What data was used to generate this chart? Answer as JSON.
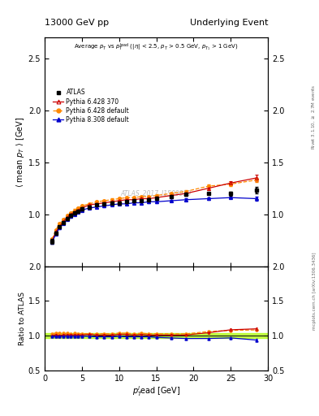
{
  "title_left": "13000 GeV pp",
  "title_right": "Underlying Event",
  "watermark": "ATLAS_2017_I1509919",
  "ylim_main": [
    0.5,
    2.7
  ],
  "ylim_ratio": [
    0.5,
    2.0
  ],
  "xlim": [
    0,
    30
  ],
  "yticks_main": [
    0.5,
    1.0,
    1.5,
    2.0,
    2.5
  ],
  "yticks_ratio": [
    0.5,
    1.0,
    1.5,
    2.0
  ],
  "xticks": [
    0,
    5,
    10,
    15,
    20,
    25,
    30
  ],
  "atlas_x": [
    1.0,
    1.5,
    2.0,
    2.5,
    3.0,
    3.5,
    4.0,
    4.5,
    5.0,
    6.0,
    7.0,
    8.0,
    9.0,
    10.0,
    11.0,
    12.0,
    13.0,
    14.0,
    15.0,
    17.0,
    19.0,
    22.0,
    25.0,
    28.5
  ],
  "atlas_y": [
    0.74,
    0.82,
    0.88,
    0.92,
    0.96,
    0.99,
    1.01,
    1.03,
    1.05,
    1.07,
    1.09,
    1.1,
    1.11,
    1.11,
    1.12,
    1.13,
    1.13,
    1.14,
    1.15,
    1.17,
    1.19,
    1.2,
    1.2,
    1.23
  ],
  "atlas_yerr": [
    0.02,
    0.01,
    0.01,
    0.01,
    0.01,
    0.01,
    0.01,
    0.01,
    0.01,
    0.01,
    0.01,
    0.01,
    0.01,
    0.01,
    0.01,
    0.01,
    0.01,
    0.01,
    0.01,
    0.01,
    0.01,
    0.01,
    0.02,
    0.03
  ],
  "p6_370_x": [
    1.0,
    1.5,
    2.0,
    2.5,
    3.0,
    3.5,
    4.0,
    4.5,
    5.0,
    6.0,
    7.0,
    8.0,
    9.0,
    10.0,
    11.0,
    12.0,
    13.0,
    14.0,
    15.0,
    17.0,
    19.0,
    22.0,
    25.0,
    28.5
  ],
  "p6_370_y": [
    0.74,
    0.83,
    0.88,
    0.93,
    0.97,
    1.0,
    1.02,
    1.04,
    1.06,
    1.09,
    1.1,
    1.11,
    1.12,
    1.13,
    1.14,
    1.14,
    1.15,
    1.15,
    1.16,
    1.18,
    1.2,
    1.25,
    1.3,
    1.35
  ],
  "p6_370_yerr": [
    0.01,
    0.01,
    0.01,
    0.01,
    0.01,
    0.01,
    0.01,
    0.01,
    0.01,
    0.01,
    0.01,
    0.01,
    0.01,
    0.01,
    0.01,
    0.01,
    0.01,
    0.01,
    0.01,
    0.01,
    0.01,
    0.02,
    0.02,
    0.03
  ],
  "p6_def_x": [
    1.0,
    1.5,
    2.0,
    2.5,
    3.0,
    3.5,
    4.0,
    4.5,
    5.0,
    6.0,
    7.0,
    8.0,
    9.0,
    10.0,
    11.0,
    12.0,
    13.0,
    14.0,
    15.0,
    17.0,
    19.0,
    22.0,
    25.0,
    28.5
  ],
  "p6_def_y": [
    0.76,
    0.85,
    0.91,
    0.95,
    0.99,
    1.01,
    1.04,
    1.06,
    1.08,
    1.1,
    1.12,
    1.13,
    1.14,
    1.15,
    1.16,
    1.16,
    1.17,
    1.17,
    1.18,
    1.2,
    1.22,
    1.27,
    1.29,
    1.33
  ],
  "p6_def_yerr": [
    0.01,
    0.01,
    0.01,
    0.01,
    0.01,
    0.01,
    0.01,
    0.01,
    0.01,
    0.01,
    0.01,
    0.01,
    0.01,
    0.01,
    0.01,
    0.01,
    0.01,
    0.01,
    0.01,
    0.01,
    0.01,
    0.02,
    0.02,
    0.02
  ],
  "p8_def_x": [
    1.0,
    1.5,
    2.0,
    2.5,
    3.0,
    3.5,
    4.0,
    4.5,
    5.0,
    6.0,
    7.0,
    8.0,
    9.0,
    10.0,
    11.0,
    12.0,
    13.0,
    14.0,
    15.0,
    17.0,
    19.0,
    22.0,
    25.0,
    28.5
  ],
  "p8_def_y": [
    0.73,
    0.81,
    0.87,
    0.91,
    0.95,
    0.98,
    1.0,
    1.02,
    1.04,
    1.06,
    1.07,
    1.08,
    1.09,
    1.1,
    1.1,
    1.11,
    1.11,
    1.12,
    1.12,
    1.13,
    1.14,
    1.15,
    1.16,
    1.15
  ],
  "p8_def_yerr": [
    0.01,
    0.01,
    0.01,
    0.01,
    0.01,
    0.01,
    0.01,
    0.01,
    0.01,
    0.01,
    0.01,
    0.01,
    0.01,
    0.01,
    0.01,
    0.01,
    0.01,
    0.01,
    0.01,
    0.01,
    0.01,
    0.01,
    0.01,
    0.02
  ],
  "color_atlas": "#000000",
  "color_p6_370": "#cc0000",
  "color_p6_def": "#ff8800",
  "color_p8_def": "#0000cc",
  "color_band": "#aaff00"
}
